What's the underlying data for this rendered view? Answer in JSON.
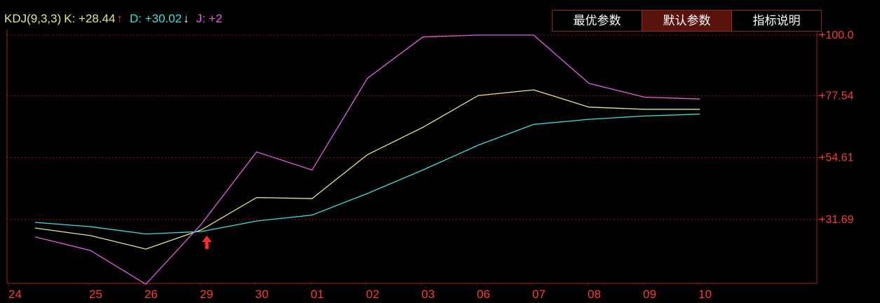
{
  "legend": {
    "kdj_label": "KDJ(9,3,3)",
    "k_text": "K: +28.44",
    "k_arrow": "↑",
    "d_text": "D: +30.02",
    "d_arrow": "↓",
    "j_text": "J: +2"
  },
  "buttons": [
    {
      "label": "最优参数",
      "active": false
    },
    {
      "label": "默认参数",
      "active": true
    },
    {
      "label": "指标说明",
      "active": false
    }
  ],
  "colors": {
    "background": "#000000",
    "axis": "#b01e12",
    "grid": "#8a1a10",
    "tick_text": "#ff3b30",
    "k": "#e6e68a",
    "d": "#37e0e0",
    "j": "#e45ce4",
    "signal": "#ff2a2a",
    "legend_label": "#e6e68a"
  },
  "chart_data": {
    "type": "line",
    "categories": [
      "24",
      "25",
      "26",
      "29",
      "30",
      "01",
      "02",
      "03",
      "06",
      "07",
      "08",
      "09",
      "10"
    ],
    "series": [
      {
        "name": "K",
        "values": [
          28.5,
          25.7,
          20.7,
          27.8,
          39.8,
          39.4,
          55.7,
          65.8,
          77.6,
          79.7,
          73.3,
          72.5,
          72.5
        ]
      },
      {
        "name": "D",
        "values": [
          30.6,
          29.0,
          26.3,
          27.2,
          31.1,
          33.3,
          41.3,
          50.0,
          59.2,
          66.9,
          68.8,
          70.0,
          70.7
        ]
      },
      {
        "name": "J",
        "values": [
          25.2,
          20.2,
          7.7,
          29.9,
          56.7,
          50.0,
          84.0,
          99.3,
          100.0,
          100.0,
          82.1,
          77.0,
          76.3
        ]
      }
    ],
    "y_ticks": [
      "+100.0",
      "+77.54",
      "+54.61",
      "+31.69"
    ],
    "y_tick_values": [
      100.0,
      77.54,
      54.61,
      31.69
    ],
    "ylim": [
      8.0,
      100.0
    ],
    "signal": {
      "category": "29",
      "direction": "up"
    },
    "grid": true
  }
}
